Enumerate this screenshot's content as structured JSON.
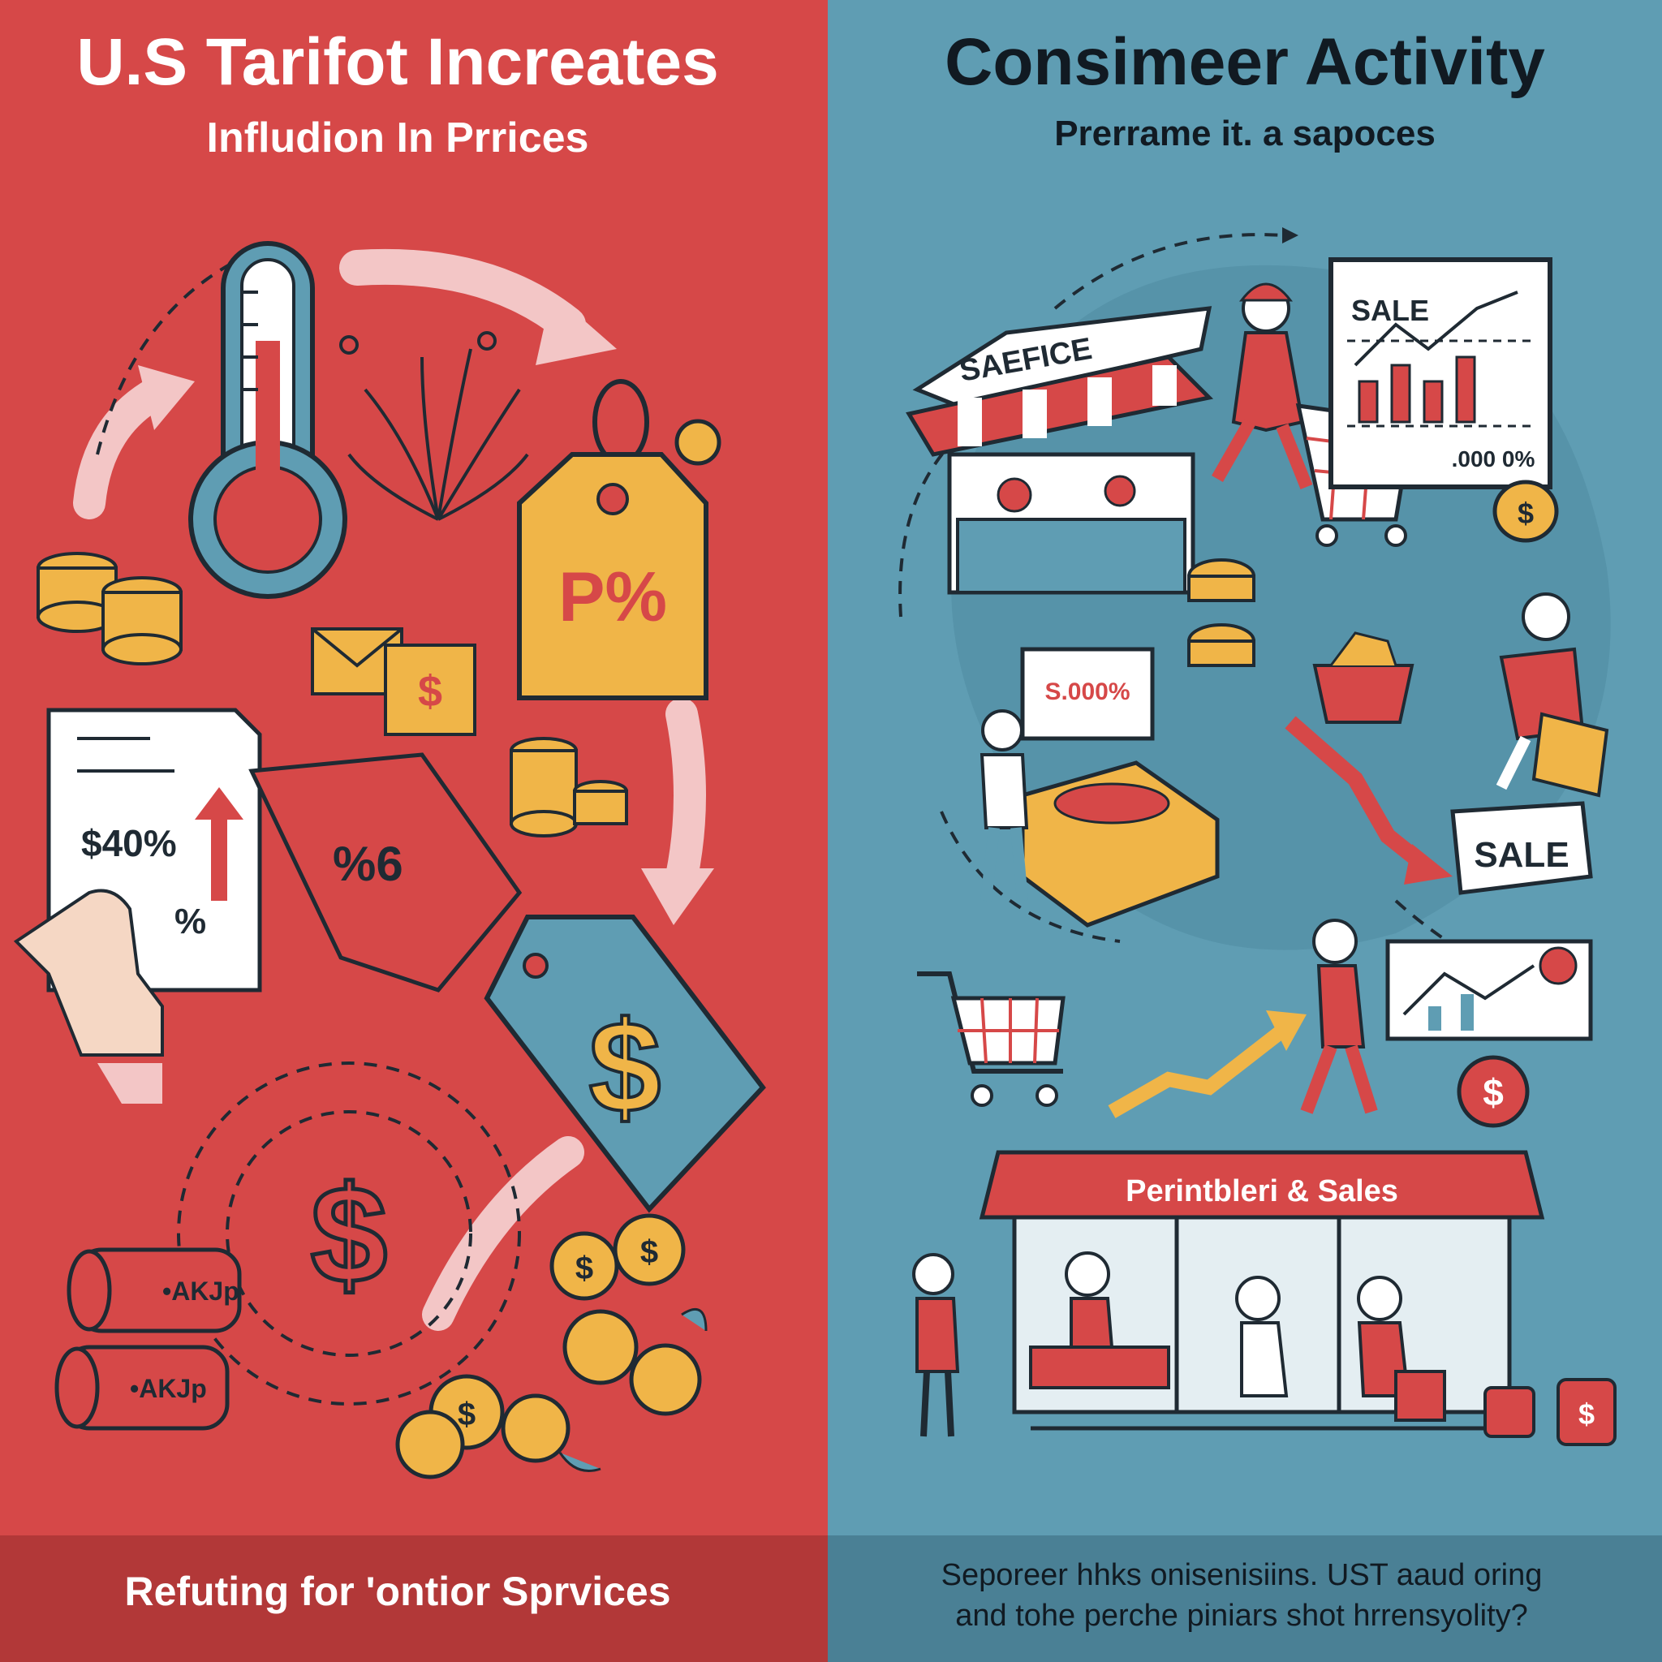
{
  "left_panel": {
    "title": "U.S Tarifot Increates",
    "subtitle": "Infludion In Prrices",
    "footer": "Refuting for 'ontior Sprvices",
    "price_tag_label": "P%",
    "document_value": "$40%",
    "document_percent": "%",
    "red_tag_label": "%6",
    "blue_tag_symbol": "$",
    "barrel_labels": [
      "•AKJp",
      "•AKJp"
    ]
  },
  "right_panel": {
    "title": "Consimeer Activity",
    "subtitle": "Prerrame it. a sapoces",
    "store_sign": "SAEFICE",
    "sale_chart_label": "SALE",
    "sale_chart_value": ".000 0%",
    "display_sign": "S.000%",
    "sale_box_label": "SALE",
    "storefront_sign": "Perintbleri & Sales",
    "footer_line1": "Seporeer hhks onisenisiins. UST aaud oring",
    "footer_line2": "and tohe perche piniars shot hrrensyolity?"
  },
  "colors": {
    "left_background": "#d64848",
    "right_background": "#5f9db3",
    "accent_red": "#d64848",
    "gold": "#f0b548",
    "teal": "#5f9db3",
    "outline": "#1f2a33"
  },
  "icons": [
    "thermometer-icon",
    "price-tag-icon",
    "coin-stack-icon",
    "document-icon",
    "blue-dollar-tag-icon",
    "dollar-cycle-icon",
    "barrel-icon",
    "coin-pile-icon",
    "market-stall-icon",
    "shopper-with-cart-icon",
    "sale-chart-icon",
    "shopping-cart-icon",
    "falling-arrow-icon",
    "rising-arrow-icon",
    "storefront-icon"
  ]
}
